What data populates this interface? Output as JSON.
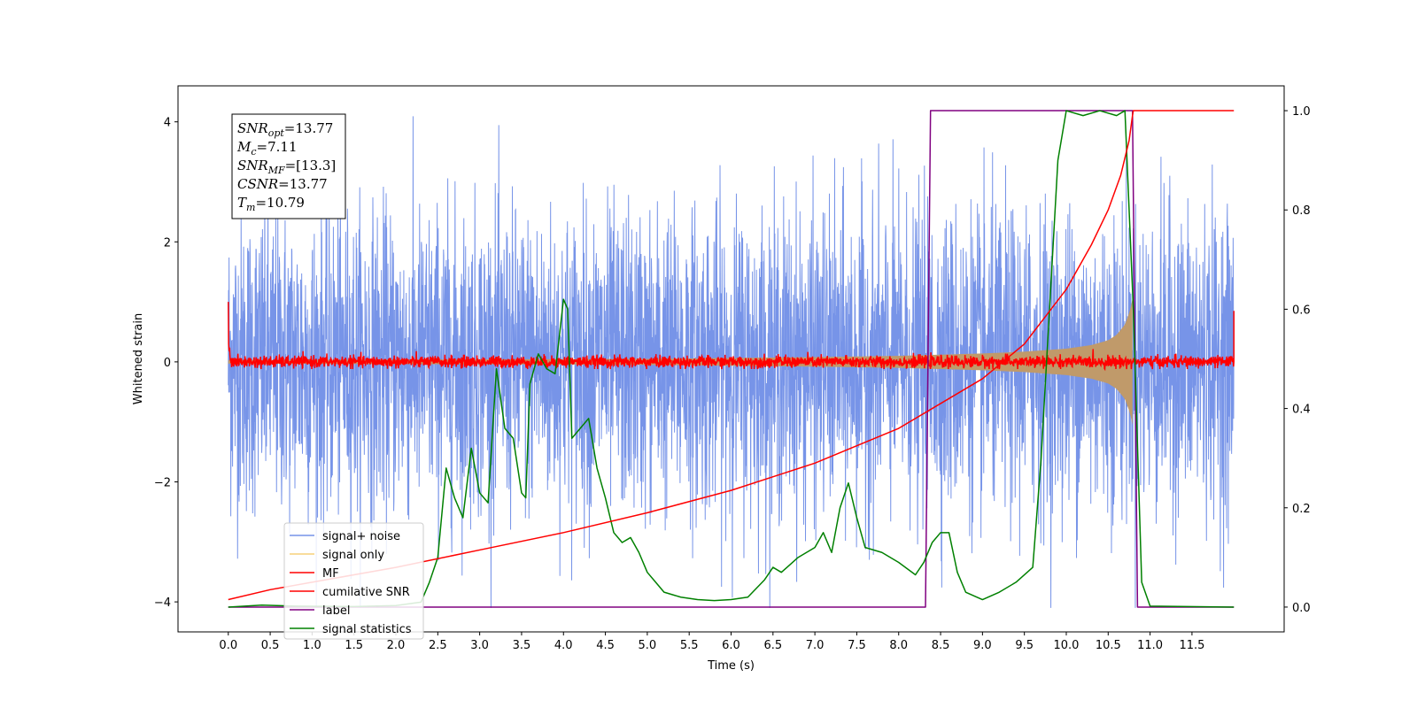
{
  "chart_data": {
    "type": "line",
    "xlabel": "Time (s)",
    "ylabel": "Whitened strain",
    "y2label": "",
    "xlim": [
      -0.6,
      12.6
    ],
    "ylim": [
      -4.5,
      4.6
    ],
    "y2lim": [
      -0.05,
      1.05
    ],
    "x_ticks": [
      "0.0",
      "0.5",
      "1.0",
      "1.5",
      "2.0",
      "2.5",
      "3.0",
      "3.5",
      "4.0",
      "4.5",
      "5.0",
      "5.5",
      "6.0",
      "6.5",
      "7.0",
      "7.5",
      "8.0",
      "8.5",
      "9.0",
      "9.5",
      "10.0",
      "10.5",
      "11.0",
      "11.5"
    ],
    "y_ticks": [
      "4",
      "2",
      "0",
      "−2",
      "−4"
    ],
    "y2_ticks": [
      "1.0",
      "0.8",
      "0.6",
      "0.4",
      "0.2",
      "0.0"
    ],
    "grid": false,
    "legend_position": "lower-left",
    "info_box": [
      {
        "sym": "SNR",
        "sub": "opt",
        "value": "=13.77"
      },
      {
        "sym": "M",
        "sub": "c",
        "value": "=7.11"
      },
      {
        "sym": "SNR",
        "sub": "MF",
        "value": "=[13.3]"
      },
      {
        "sym": "CSNR",
        "sub": "",
        "value": "=13.77"
      },
      {
        "sym": "T",
        "sub": "m",
        "value": "=10.79"
      }
    ],
    "series": [
      {
        "name": "signal+ noise",
        "color": "#7794e8",
        "description_style": "noisy band",
        "y_range": [
          -4.1,
          4.15
        ],
        "x_range": [
          0.0,
          12.0
        ]
      },
      {
        "name": "signal only",
        "color": "#f5d07a",
        "envelope_x": [
          0.0,
          5.0,
          7.0,
          8.0,
          9.0,
          9.5,
          10.0,
          10.3,
          10.5,
          10.6,
          10.7,
          10.76,
          10.79
        ],
        "envelope_y": [
          0.03,
          0.05,
          0.08,
          0.1,
          0.14,
          0.17,
          0.22,
          0.28,
          0.36,
          0.45,
          0.62,
          0.85,
          1.05
        ]
      },
      {
        "name": "MF",
        "color": "#ff0000",
        "y_range": [
          -0.12,
          0.22
        ],
        "edge_values": [
          1.0,
          0.85
        ]
      },
      {
        "name": "cumilative SNR",
        "color": "#ff0000",
        "x": [
          0.0,
          0.5,
          1.0,
          2.0,
          3.0,
          4.0,
          5.0,
          6.0,
          7.0,
          8.0,
          9.0,
          9.5,
          10.0,
          10.3,
          10.5,
          10.65,
          10.75,
          10.79,
          10.8,
          11.0,
          12.0
        ],
        "y": [
          0.015,
          0.035,
          0.05,
          0.08,
          0.115,
          0.15,
          0.19,
          0.235,
          0.29,
          0.36,
          0.46,
          0.53,
          0.64,
          0.73,
          0.8,
          0.87,
          0.94,
          0.99,
          1.0,
          1.0,
          1.0
        ]
      },
      {
        "name": "label",
        "color": "#800080",
        "x": [
          0.0,
          8.32,
          8.38,
          10.79,
          10.85,
          12.0
        ],
        "y": [
          0.0,
          0.0,
          1.0,
          1.0,
          0.0,
          0.0
        ]
      },
      {
        "name": "signal statistics",
        "color": "#008000",
        "x": [
          0.0,
          0.4,
          0.8,
          1.5,
          2.0,
          2.3,
          2.4,
          2.5,
          2.6,
          2.7,
          2.8,
          2.9,
          3.0,
          3.1,
          3.2,
          3.3,
          3.4,
          3.5,
          3.55,
          3.6,
          3.7,
          3.8,
          3.9,
          4.0,
          4.05,
          4.1,
          4.15,
          4.2,
          4.3,
          4.4,
          4.5,
          4.6,
          4.7,
          4.8,
          4.9,
          5.0,
          5.1,
          5.2,
          5.4,
          5.6,
          5.8,
          6.0,
          6.2,
          6.4,
          6.5,
          6.6,
          6.8,
          7.0,
          7.1,
          7.2,
          7.3,
          7.4,
          7.5,
          7.6,
          7.8,
          8.0,
          8.2,
          8.3,
          8.4,
          8.5,
          8.6,
          8.7,
          8.8,
          9.0,
          9.2,
          9.4,
          9.6,
          9.7,
          9.8,
          9.9,
          10.0,
          10.2,
          10.4,
          10.6,
          10.7,
          10.8,
          10.9,
          11.0,
          12.0
        ],
        "y": [
          0.0,
          0.004,
          0.002,
          0.001,
          0.003,
          0.01,
          0.05,
          0.1,
          0.28,
          0.22,
          0.18,
          0.32,
          0.23,
          0.21,
          0.48,
          0.36,
          0.34,
          0.23,
          0.22,
          0.45,
          0.51,
          0.48,
          0.47,
          0.62,
          0.6,
          0.34,
          0.35,
          0.36,
          0.38,
          0.28,
          0.22,
          0.15,
          0.13,
          0.14,
          0.11,
          0.07,
          0.05,
          0.03,
          0.02,
          0.015,
          0.013,
          0.015,
          0.02,
          0.055,
          0.08,
          0.07,
          0.1,
          0.12,
          0.15,
          0.11,
          0.2,
          0.25,
          0.18,
          0.12,
          0.11,
          0.09,
          0.065,
          0.09,
          0.13,
          0.15,
          0.15,
          0.07,
          0.03,
          0.015,
          0.03,
          0.05,
          0.08,
          0.3,
          0.6,
          0.9,
          1.0,
          0.99,
          1.0,
          0.99,
          1.0,
          0.6,
          0.05,
          0.002,
          0.0
        ]
      }
    ]
  }
}
